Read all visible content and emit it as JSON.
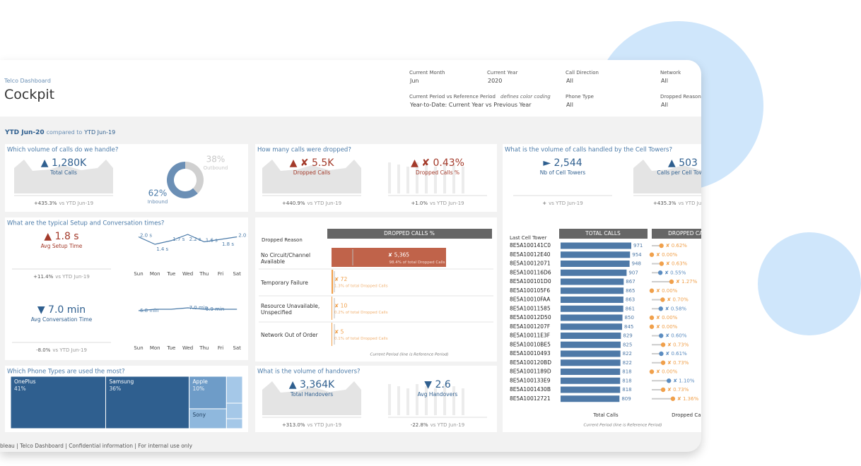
{
  "header": {
    "subtitle": "Telco Dashboard",
    "title": "Cockpit"
  },
  "filters": [
    {
      "label": "Current Month",
      "value": "Jun"
    },
    {
      "label": "Current Year",
      "value": "2020"
    },
    {
      "label": "Call Direction",
      "value": "All"
    },
    {
      "label": "Network",
      "value": "All"
    },
    {
      "label": "Current Period vs Reference Period",
      "note": "defines color coding",
      "value": "Year-to-Date: Current Year vs Previous Year"
    },
    {
      "label": "Phone Type",
      "value": "All"
    },
    {
      "label": "Dropped Reason",
      "value": "All"
    }
  ],
  "period": {
    "current": "YTD Jun-20",
    "compared": "compared to",
    "reference": "YTD Jun-19",
    "vs": "vs YTD Jun-19"
  },
  "volume": {
    "title": "Which volume of calls do we handle?",
    "kpi": {
      "value": "▲ 1,280K",
      "label": "Total Calls",
      "change": "+435.3%"
    },
    "donut": [
      {
        "name": "Outbound",
        "value": 38,
        "label": "38%"
      },
      {
        "name": "Inbound",
        "value": 62,
        "label": "62%"
      }
    ]
  },
  "dropped": {
    "title": "How many calls were dropped?",
    "kpis": [
      {
        "value": "▲ ✘ 5.5K",
        "label": "Dropped Calls",
        "change": "+440.9%"
      },
      {
        "value": "▲ ✘ 0.43%",
        "label": "Dropped Calls %",
        "change": "+1.0%"
      }
    ]
  },
  "towers": {
    "title": "What is the volume of calls handled by the Cell Towers?",
    "kpis": [
      {
        "value": "► 2,544",
        "label": "Nb of Cell Towers",
        "change": "+"
      },
      {
        "value": "▲ 503",
        "label": "Calls per Cell Tower",
        "change": "+435.3%"
      }
    ],
    "row_header": "Last Cell Tower",
    "col_headers": [
      "TOTAL CALLS",
      "DROPPED CALLS %"
    ],
    "col_footers": [
      "Total Calls",
      "Dropped Calls %"
    ],
    "footnote": "Current Period  (line is Reference Period)",
    "rows": [
      {
        "tower": "8E5A100141C0",
        "calls": 971,
        "dropped": 0.62,
        "dropped_label": "✘ 0.62%",
        "color": "#f0a04b"
      },
      {
        "tower": "8E5A10012E40",
        "calls": 954,
        "dropped": 0.0,
        "dropped_label": "✘ 0.00%",
        "color": "#f0a04b"
      },
      {
        "tower": "8E5A10012071",
        "calls": 948,
        "dropped": 0.63,
        "dropped_label": "✘ 0.63%",
        "color": "#f0a04b"
      },
      {
        "tower": "8E5A100116D6",
        "calls": 907,
        "dropped": 0.55,
        "dropped_label": "✘ 0.55%",
        "color": "#5b8cc0"
      },
      {
        "tower": "8E5A100101D0",
        "calls": 867,
        "dropped": 1.27,
        "dropped_label": "✘ 1.27%",
        "color": "#f0a04b"
      },
      {
        "tower": "8E5A100105F6",
        "calls": 865,
        "dropped": 0.0,
        "dropped_label": "✘ 0.00%",
        "color": "#f0a04b"
      },
      {
        "tower": "8E5A10010FAA",
        "calls": 863,
        "dropped": 0.7,
        "dropped_label": "✘ 0.70%",
        "color": "#f0a04b"
      },
      {
        "tower": "8E5A10011585",
        "calls": 861,
        "dropped": 0.58,
        "dropped_label": "✘ 0.58%",
        "color": "#5b8cc0"
      },
      {
        "tower": "8E5A10012D50",
        "calls": 850,
        "dropped": 0.0,
        "dropped_label": "✘ 0.00%",
        "color": "#f0a04b"
      },
      {
        "tower": "8E5A1001207F",
        "calls": 845,
        "dropped": 0.0,
        "dropped_label": "✘ 0.00%",
        "color": "#f0a04b"
      },
      {
        "tower": "8E5A10011E3F",
        "calls": 829,
        "dropped": 0.6,
        "dropped_label": "✘ 0.60%",
        "color": "#5b8cc0"
      },
      {
        "tower": "8E5A10010BE5",
        "calls": 825,
        "dropped": 0.73,
        "dropped_label": "✘ 0.73%",
        "color": "#f0a04b"
      },
      {
        "tower": "8E5A10010493",
        "calls": 822,
        "dropped": 0.61,
        "dropped_label": "✘ 0.61%",
        "color": "#5b8cc0"
      },
      {
        "tower": "8E5A100120BD",
        "calls": 822,
        "dropped": 0.73,
        "dropped_label": "✘ 0.73%",
        "color": "#f0a04b"
      },
      {
        "tower": "8E5A1001189D",
        "calls": 818,
        "dropped": 0.0,
        "dropped_label": "✘ 0.00%",
        "color": "#f0a04b"
      },
      {
        "tower": "8E5A100133E9",
        "calls": 818,
        "dropped": 1.1,
        "dropped_label": "✘ 1.10%",
        "color": "#5b8cc0"
      },
      {
        "tower": "8E5A1001430B",
        "calls": 818,
        "dropped": 0.73,
        "dropped_label": "✘ 0.73%",
        "color": "#f0a04b"
      },
      {
        "tower": "8E5A10012721",
        "calls": 809,
        "dropped": 1.36,
        "dropped_label": "✘ 1.36%",
        "color": "#f0a04b"
      }
    ]
  },
  "times": {
    "title": "What are the typical Setup and Conversation times?",
    "days": [
      "Sun",
      "Mon",
      "Tue",
      "Wed",
      "Thu",
      "Fri",
      "Sat"
    ],
    "setup": {
      "kpi": {
        "value": "▲ 1.8 s",
        "label": "Avg Setup Time",
        "change": "+11.4%"
      },
      "values": [
        2.0,
        1.4,
        1.7,
        2.2,
        1.6,
        1.8,
        2.0
      ],
      "value_labels": [
        "2.0 s",
        "1.4 s",
        "1.7 s",
        "2.2 s",
        "1.6 s",
        "1.8 s",
        "2.0 s"
      ]
    },
    "conversation": {
      "kpi": {
        "value": "▼ 7.0 min",
        "label": "Avg Conversation Time",
        "change": "-8.0%"
      },
      "values": [
        6.8,
        6.9,
        6.9,
        7.0,
        6.9,
        6.9,
        6.9
      ],
      "value_labels": [
        "6.8 min",
        null,
        null,
        "7.0 min",
        "6.9 min",
        null,
        null
      ]
    }
  },
  "reasons": {
    "row_header": "Dropped Reason",
    "col_header": "DROPPED CALLS %",
    "footnote": "Current Period  (line is Reference Period)",
    "rows": [
      {
        "reason": "No Circuit/Channel Available",
        "value": 5365,
        "value_label": "✘ 5,365",
        "share": "98.4% of total Dropped Calls"
      },
      {
        "reason": "Temporary Failure",
        "value": 72,
        "value_label": "✘ 72",
        "share": "1.3% of total Dropped Calls"
      },
      {
        "reason": "Resource Unavailable, Unspecified",
        "value": 10,
        "value_label": "✘ 10",
        "share": "0.2% of total Dropped Calls"
      },
      {
        "reason": "Network Out of Order",
        "value": 5,
        "value_label": "✘ 5",
        "share": "0.1% of total Dropped Calls"
      }
    ]
  },
  "phones": {
    "title": "Which Phone Types are used the most?",
    "cells": [
      {
        "name": "OnePlus",
        "value": 41,
        "label": "41%"
      },
      {
        "name": "Samsung",
        "value": 36,
        "label": "36%"
      },
      {
        "name": "Apple",
        "value": 10,
        "label": "10%"
      },
      {
        "name": "Sony"
      }
    ]
  },
  "handovers": {
    "title": "What is the volume of handovers?",
    "kpis": [
      {
        "value": "▲ 3,364K",
        "label": "Total Handovers",
        "change": "+313.0%"
      },
      {
        "value": "▼ 2.6",
        "label": "Avg Handovers",
        "change": "-22.8%"
      }
    ]
  },
  "footer": "bleau | Telco Dashboard | Confidential information | For internal use only"
}
